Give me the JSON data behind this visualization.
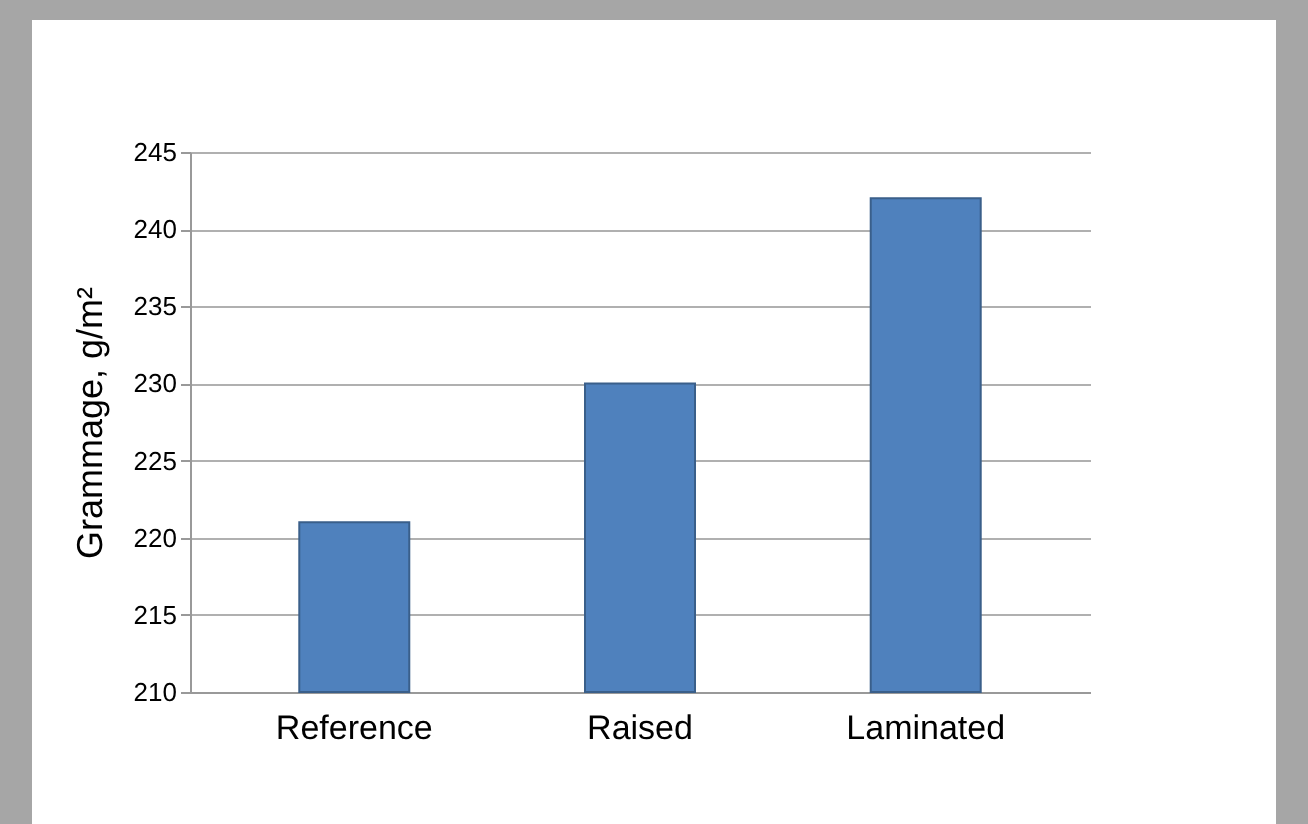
{
  "chart_data": {
    "type": "bar",
    "ylabel": "Grammage, g/m²",
    "categories": [
      "Reference",
      "Raised",
      "Laminated"
    ],
    "values": [
      221,
      230,
      242
    ],
    "color": "#4f81bd",
    "ylim": [
      210,
      245
    ],
    "yticks": [
      210,
      215,
      220,
      225,
      230,
      235,
      240,
      245
    ],
    "grid": "y"
  }
}
